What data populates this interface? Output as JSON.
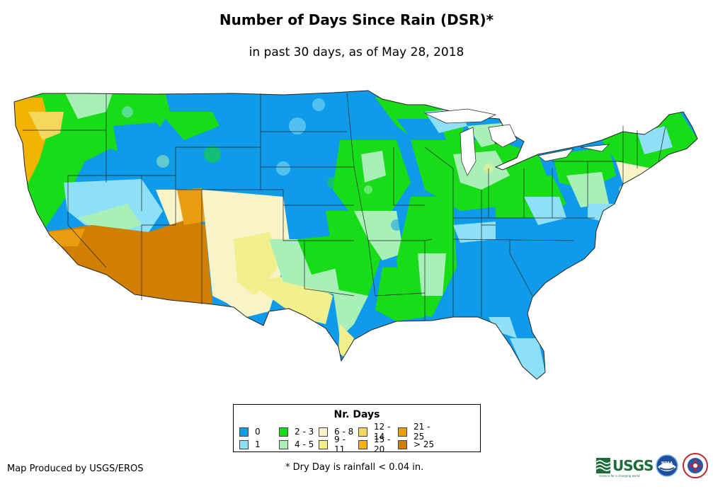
{
  "title": "Number of Days Since Rain (DSR)*",
  "subtitle": "in past 30 days, as of May 28, 2018",
  "legend": {
    "title": "Nr. Days",
    "items": [
      {
        "label": "0",
        "color": "#0f9bea"
      },
      {
        "label": "1",
        "color": "#8de0f5"
      },
      {
        "label": "2 - 3",
        "color": "#17dc17"
      },
      {
        "label": "4 - 5",
        "color": "#a8f0b8"
      },
      {
        "label": "6 - 8",
        "color": "#f8f4c8"
      },
      {
        "label": "9 - 11",
        "color": "#f2f08c"
      },
      {
        "label": "12 - 14",
        "color": "#f4d85c"
      },
      {
        "label": "15 - 20",
        "color": "#f2b400"
      },
      {
        "label": "21 - 25",
        "color": "#e99c12"
      },
      {
        "label": "> 25",
        "color": "#d07f00"
      }
    ]
  },
  "credit": "Map Produced by USGS/EROS",
  "footnote": "* Dry Day is rainfall < 0.04 in.",
  "logos": {
    "usgs_text": "USGS",
    "usgs_tagline": "science for a changing world",
    "noaa_text": "NOAA",
    "nws_label": "NATIONAL WEATHER SERVICE"
  },
  "icons": [
    "usgs-logo-icon",
    "noaa-logo-icon",
    "nws-logo-icon"
  ]
}
